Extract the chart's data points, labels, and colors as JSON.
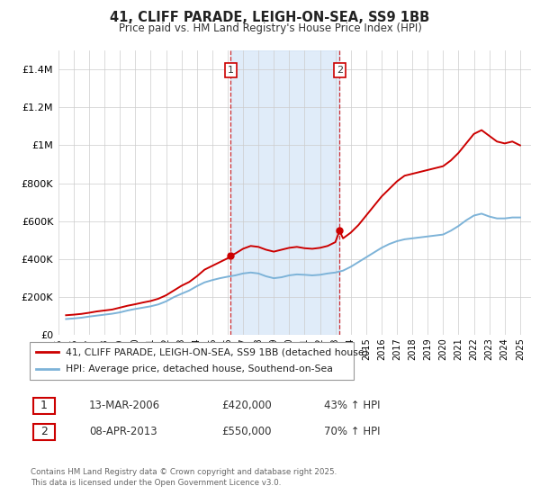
{
  "title": "41, CLIFF PARADE, LEIGH-ON-SEA, SS9 1BB",
  "subtitle": "Price paid vs. HM Land Registry's House Price Index (HPI)",
  "legend_entry1": "41, CLIFF PARADE, LEIGH-ON-SEA, SS9 1BB (detached house)",
  "legend_entry2": "HPI: Average price, detached house, Southend-on-Sea",
  "annotation1_date": "13-MAR-2006",
  "annotation1_price": "£420,000",
  "annotation1_hpi": "43% ↑ HPI",
  "annotation2_date": "08-APR-2013",
  "annotation2_price": "£550,000",
  "annotation2_hpi": "70% ↑ HPI",
  "footnote": "Contains HM Land Registry data © Crown copyright and database right 2025.\nThis data is licensed under the Open Government Licence v3.0.",
  "ylim": [
    0,
    1500000
  ],
  "yticks": [
    0,
    200000,
    400000,
    600000,
    800000,
    1000000,
    1200000,
    1400000
  ],
  "red_color": "#cc0000",
  "blue_color": "#7db3d8",
  "vline1_x": 2006.2,
  "vline2_x": 2013.27,
  "sale1_x": 2006.2,
  "sale1_y": 420000,
  "sale2_x": 2013.27,
  "sale2_y": 550000,
  "xlim_start": 1995.3,
  "xlim_end": 2025.7,
  "red_data": [
    [
      1995.5,
      105000
    ],
    [
      1996.0,
      108000
    ],
    [
      1996.5,
      112000
    ],
    [
      1997.0,
      118000
    ],
    [
      1997.5,
      125000
    ],
    [
      1998.0,
      130000
    ],
    [
      1998.5,
      135000
    ],
    [
      1999.0,
      145000
    ],
    [
      1999.5,
      155000
    ],
    [
      2000.0,
      163000
    ],
    [
      2000.5,
      172000
    ],
    [
      2001.0,
      180000
    ],
    [
      2001.5,
      192000
    ],
    [
      2002.0,
      210000
    ],
    [
      2002.5,
      235000
    ],
    [
      2003.0,
      260000
    ],
    [
      2003.5,
      280000
    ],
    [
      2004.0,
      310000
    ],
    [
      2004.5,
      345000
    ],
    [
      2005.0,
      365000
    ],
    [
      2005.5,
      385000
    ],
    [
      2006.0,
      405000
    ],
    [
      2006.2,
      420000
    ],
    [
      2006.5,
      430000
    ],
    [
      2007.0,
      455000
    ],
    [
      2007.5,
      470000
    ],
    [
      2008.0,
      465000
    ],
    [
      2008.5,
      450000
    ],
    [
      2009.0,
      440000
    ],
    [
      2009.5,
      450000
    ],
    [
      2010.0,
      460000
    ],
    [
      2010.5,
      465000
    ],
    [
      2011.0,
      458000
    ],
    [
      2011.5,
      455000
    ],
    [
      2012.0,
      460000
    ],
    [
      2012.5,
      470000
    ],
    [
      2013.0,
      490000
    ],
    [
      2013.27,
      550000
    ],
    [
      2013.5,
      510000
    ],
    [
      2014.0,
      540000
    ],
    [
      2014.5,
      580000
    ],
    [
      2015.0,
      630000
    ],
    [
      2015.5,
      680000
    ],
    [
      2016.0,
      730000
    ],
    [
      2016.5,
      770000
    ],
    [
      2017.0,
      810000
    ],
    [
      2017.5,
      840000
    ],
    [
      2018.0,
      850000
    ],
    [
      2018.5,
      860000
    ],
    [
      2019.0,
      870000
    ],
    [
      2019.5,
      880000
    ],
    [
      2020.0,
      890000
    ],
    [
      2020.5,
      920000
    ],
    [
      2021.0,
      960000
    ],
    [
      2021.5,
      1010000
    ],
    [
      2022.0,
      1060000
    ],
    [
      2022.5,
      1080000
    ],
    [
      2023.0,
      1050000
    ],
    [
      2023.5,
      1020000
    ],
    [
      2024.0,
      1010000
    ],
    [
      2024.5,
      1020000
    ],
    [
      2025.0,
      1000000
    ]
  ],
  "blue_data": [
    [
      1995.5,
      85000
    ],
    [
      1996.0,
      88000
    ],
    [
      1996.5,
      92000
    ],
    [
      1997.0,
      98000
    ],
    [
      1997.5,
      103000
    ],
    [
      1998.0,
      108000
    ],
    [
      1998.5,
      113000
    ],
    [
      1999.0,
      120000
    ],
    [
      1999.5,
      130000
    ],
    [
      2000.0,
      138000
    ],
    [
      2000.5,
      145000
    ],
    [
      2001.0,
      152000
    ],
    [
      2001.5,
      162000
    ],
    [
      2002.0,
      178000
    ],
    [
      2002.5,
      200000
    ],
    [
      2003.0,
      218000
    ],
    [
      2003.5,
      235000
    ],
    [
      2004.0,
      258000
    ],
    [
      2004.5,
      278000
    ],
    [
      2005.0,
      290000
    ],
    [
      2005.5,
      300000
    ],
    [
      2006.0,
      308000
    ],
    [
      2006.5,
      315000
    ],
    [
      2007.0,
      325000
    ],
    [
      2007.5,
      330000
    ],
    [
      2008.0,
      325000
    ],
    [
      2008.5,
      310000
    ],
    [
      2009.0,
      300000
    ],
    [
      2009.5,
      305000
    ],
    [
      2010.0,
      315000
    ],
    [
      2010.5,
      320000
    ],
    [
      2011.0,
      318000
    ],
    [
      2011.5,
      315000
    ],
    [
      2012.0,
      318000
    ],
    [
      2012.5,
      325000
    ],
    [
      2013.0,
      330000
    ],
    [
      2013.5,
      340000
    ],
    [
      2014.0,
      360000
    ],
    [
      2014.5,
      385000
    ],
    [
      2015.0,
      410000
    ],
    [
      2015.5,
      435000
    ],
    [
      2016.0,
      460000
    ],
    [
      2016.5,
      480000
    ],
    [
      2017.0,
      495000
    ],
    [
      2017.5,
      505000
    ],
    [
      2018.0,
      510000
    ],
    [
      2018.5,
      515000
    ],
    [
      2019.0,
      520000
    ],
    [
      2019.5,
      525000
    ],
    [
      2020.0,
      530000
    ],
    [
      2020.5,
      550000
    ],
    [
      2021.0,
      575000
    ],
    [
      2021.5,
      605000
    ],
    [
      2022.0,
      630000
    ],
    [
      2022.5,
      640000
    ],
    [
      2023.0,
      625000
    ],
    [
      2023.5,
      615000
    ],
    [
      2024.0,
      615000
    ],
    [
      2024.5,
      620000
    ],
    [
      2025.0,
      620000
    ]
  ]
}
